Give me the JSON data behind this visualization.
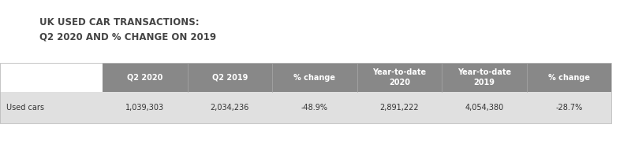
{
  "title_line1": "UK USED CAR TRANSACTIONS:",
  "title_line2": "Q2 2020 AND % CHANGE ON 2019",
  "title_fontsize": 8.5,
  "title_color": "#444444",
  "header_bg_color": "#888888",
  "header_text_color": "#ffffff",
  "row_bg_color": "#e0e0e0",
  "row_text_color": "#333333",
  "bg_color": "#ffffff",
  "col_headers": [
    "Q2 2020",
    "Q2 2019",
    "% change",
    "Year-to-date\n2020",
    "Year-to-date\n2019",
    "% change"
  ],
  "row_label": "Used cars",
  "row_values": [
    "1,039,303",
    "2,034,236",
    "-48.9%",
    "2,891,222",
    "4,054,380",
    "-28.7%"
  ],
  "header_fontsize": 7.0,
  "cell_fontsize": 7.0,
  "label_fontsize": 7.0,
  "fig_width": 8.0,
  "fig_height": 2.1,
  "dpi": 100
}
